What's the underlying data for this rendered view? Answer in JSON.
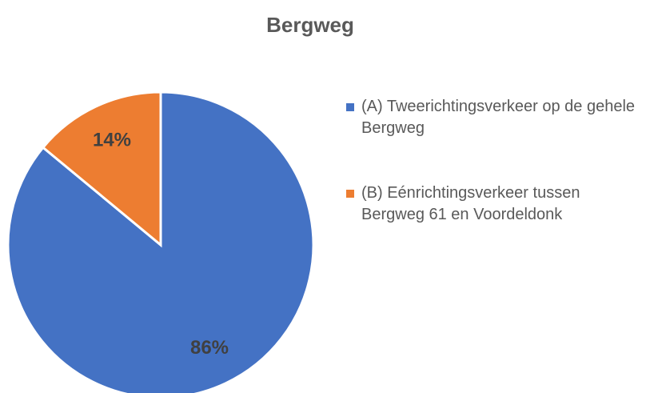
{
  "chart_data": {
    "type": "pie",
    "title": "Bergweg",
    "categories": [
      "(A) Tweerichtingsverkeer op de gehele Bergweg",
      "(B) Eénrichtingsverkeer tussen Bergweg 61 en Voordeldonk"
    ],
    "values": [
      86,
      14
    ],
    "value_labels": [
      "86%",
      "14%"
    ],
    "colors": [
      "#4472c4",
      "#ed7d31"
    ],
    "legend": "right"
  }
}
